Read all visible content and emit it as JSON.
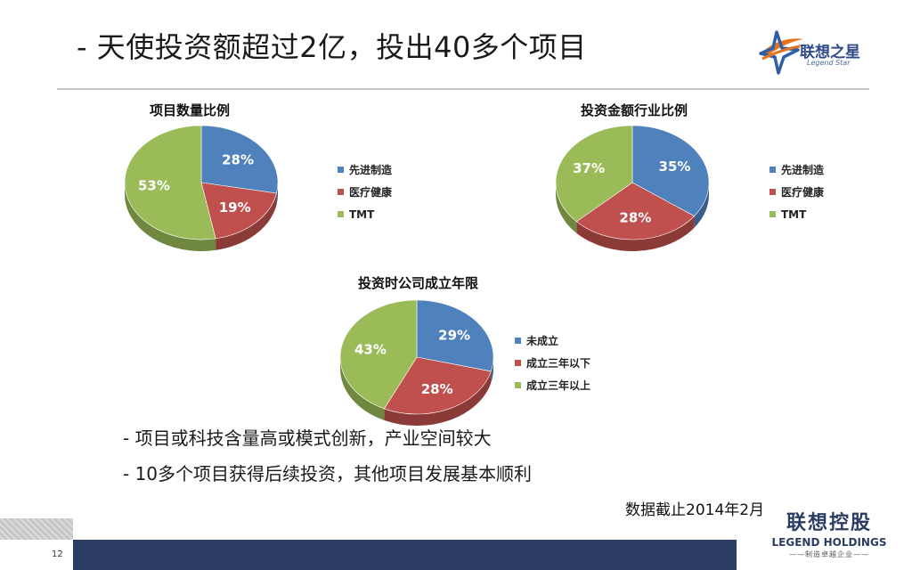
{
  "slide": {
    "title": "- 天使投资额超过2亿，投出40多个项目",
    "logo_top": {
      "text": "联想之星",
      "sub": "Legend Star"
    },
    "bullets": [
      "-  项目或科技含量高或模式创新，产业空间较大",
      "-  10多个项目获得后续投资，其他项目发展基本顺利"
    ],
    "source_note": "数据截止2014年2月",
    "page_number": "12",
    "logo_bottom": {
      "cn": "联想控股",
      "en": "LEGEND HOLDINGS",
      "tagline": "——制造卓越企业——"
    }
  },
  "chart_data": [
    {
      "type": "pie",
      "title": "项目数量比例",
      "categories": [
        "先进制造",
        "医疗健康",
        "TMT"
      ],
      "values": [
        28,
        19,
        53
      ],
      "labels": [
        "28%",
        "19%",
        "53%"
      ],
      "colors": [
        "#4f81bd",
        "#c0504d",
        "#9bbb59"
      ],
      "legend_position": "right"
    },
    {
      "type": "pie",
      "title": "投资金额行业比例",
      "categories": [
        "先进制造",
        "医疗健康",
        "TMT"
      ],
      "values": [
        35,
        28,
        37
      ],
      "labels": [
        "35%",
        "28%",
        "37%"
      ],
      "colors": [
        "#4f81bd",
        "#c0504d",
        "#9bbb59"
      ],
      "legend_position": "right"
    },
    {
      "type": "pie",
      "title": "投资时公司成立年限",
      "categories": [
        "未成立",
        "成立三年以下",
        "成立三年以上"
      ],
      "values": [
        29,
        28,
        43
      ],
      "labels": [
        "29%",
        "28%",
        "43%"
      ],
      "colors": [
        "#4f81bd",
        "#c0504d",
        "#9bbb59"
      ],
      "legend_position": "right"
    }
  ]
}
